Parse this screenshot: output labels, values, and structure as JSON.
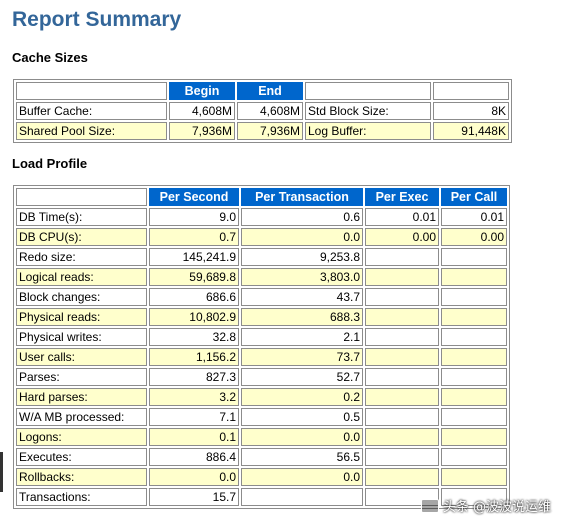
{
  "title": "Report Summary",
  "cache_sizes": {
    "heading": "Cache Sizes",
    "headers": [
      "",
      "Begin",
      "End",
      "",
      ""
    ],
    "rows": [
      [
        "Buffer Cache:",
        "4,608M",
        "4,608M",
        "Std Block Size:",
        "8K"
      ],
      [
        "Shared Pool Size:",
        "7,936M",
        "7,936M",
        "Log Buffer:",
        "91,448K"
      ]
    ]
  },
  "load_profile": {
    "heading": "Load Profile",
    "headers": [
      "",
      "Per Second",
      "Per Transaction",
      "Per Exec",
      "Per Call"
    ],
    "rows": [
      [
        "DB Time(s):",
        "9.0",
        "0.6",
        "0.01",
        "0.01"
      ],
      [
        "DB CPU(s):",
        "0.7",
        "0.0",
        "0.00",
        "0.00"
      ],
      [
        "Redo size:",
        "145,241.9",
        "9,253.8",
        "",
        ""
      ],
      [
        "Logical reads:",
        "59,689.8",
        "3,803.0",
        "",
        ""
      ],
      [
        "Block changes:",
        "686.6",
        "43.7",
        "",
        ""
      ],
      [
        "Physical reads:",
        "10,802.9",
        "688.3",
        "",
        ""
      ],
      [
        "Physical writes:",
        "32.8",
        "2.1",
        "",
        ""
      ],
      [
        "User calls:",
        "1,156.2",
        "73.7",
        "",
        ""
      ],
      [
        "Parses:",
        "827.3",
        "52.7",
        "",
        ""
      ],
      [
        "Hard parses:",
        "3.2",
        "0.2",
        "",
        ""
      ],
      [
        "W/A MB processed:",
        "7.1",
        "0.5",
        "",
        ""
      ],
      [
        "Logons:",
        "0.1",
        "0.0",
        "",
        ""
      ],
      [
        "Executes:",
        "886.4",
        "56.5",
        "",
        ""
      ],
      [
        "Rollbacks:",
        "0.0",
        "0.0",
        "",
        ""
      ],
      [
        "Transactions:",
        "15.7",
        "",
        "",
        ""
      ]
    ]
  },
  "watermark": {
    "text": "头条 @波波说运维",
    "icon": "toutiao-logo-icon"
  }
}
